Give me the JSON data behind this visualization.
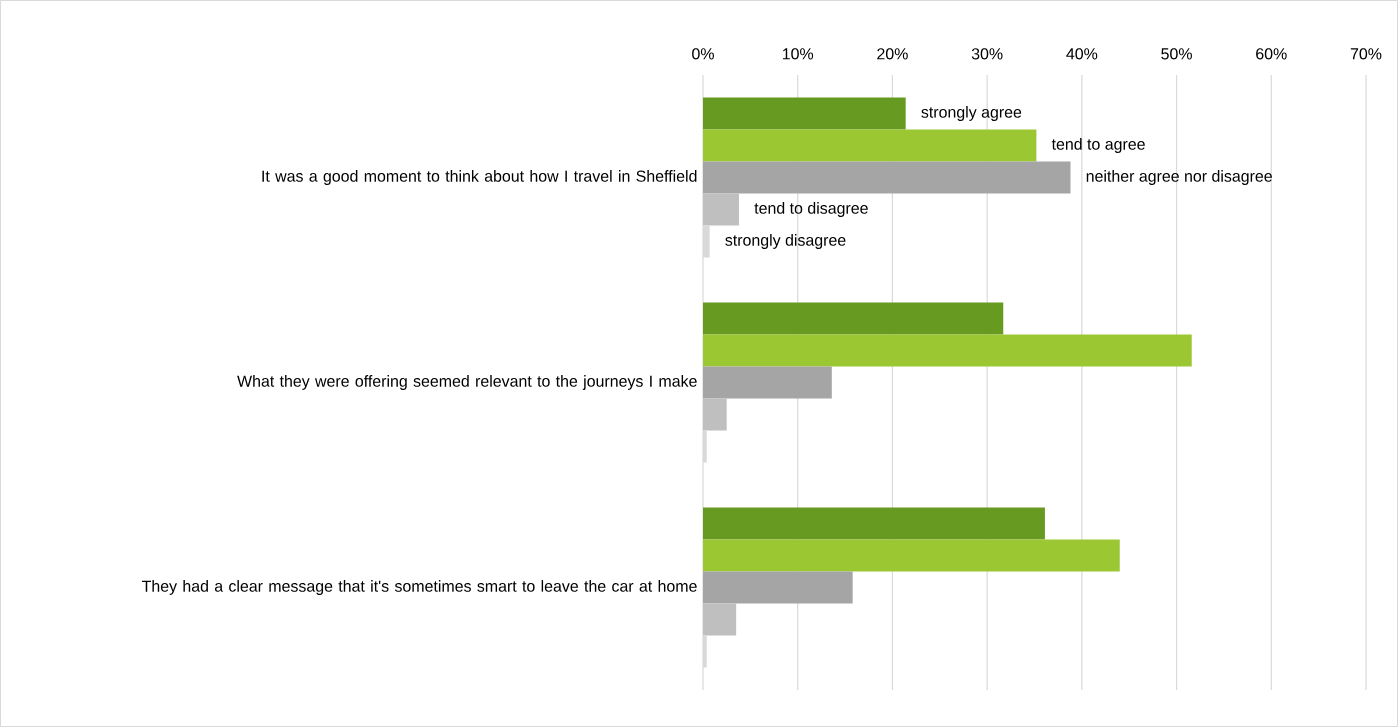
{
  "chart_data": {
    "type": "bar",
    "orientation": "horizontal",
    "grid": "x",
    "categories": [
      "It was a good moment to think about how I travel in Sheffield",
      "What they were offering seemed relevant to the journeys I make",
      "They had a clear message that it's sometimes smart to leave the car at home"
    ],
    "xlim": [
      0,
      70
    ],
    "xticks": [
      {
        "value": 0,
        "label": "0%"
      },
      {
        "value": 10,
        "label": "10%"
      },
      {
        "value": 20,
        "label": "20%"
      },
      {
        "value": 30,
        "label": "30%"
      },
      {
        "value": 40,
        "label": "40%"
      },
      {
        "value": 50,
        "label": "50%"
      },
      {
        "value": 60,
        "label": "60%"
      },
      {
        "value": 70,
        "label": "70%"
      }
    ],
    "series": [
      {
        "name": "strongly agree",
        "color": "#669a21",
        "values": [
          21.4,
          31.7,
          36.1
        ]
      },
      {
        "name": "tend to agree",
        "color": "#9bc733",
        "values": [
          35.2,
          51.6,
          44.0
        ]
      },
      {
        "name": "neither agree nor disagree",
        "color": "#a5a5a5",
        "values": [
          38.8,
          13.6,
          15.8
        ]
      },
      {
        "name": "tend to disagree",
        "color": "#bfbfbf",
        "values": [
          3.8,
          2.5,
          3.5
        ]
      },
      {
        "name": "strongly disagree",
        "color": "#d9d9d9",
        "values": [
          0.7,
          0.4,
          0.4
        ]
      }
    ]
  }
}
